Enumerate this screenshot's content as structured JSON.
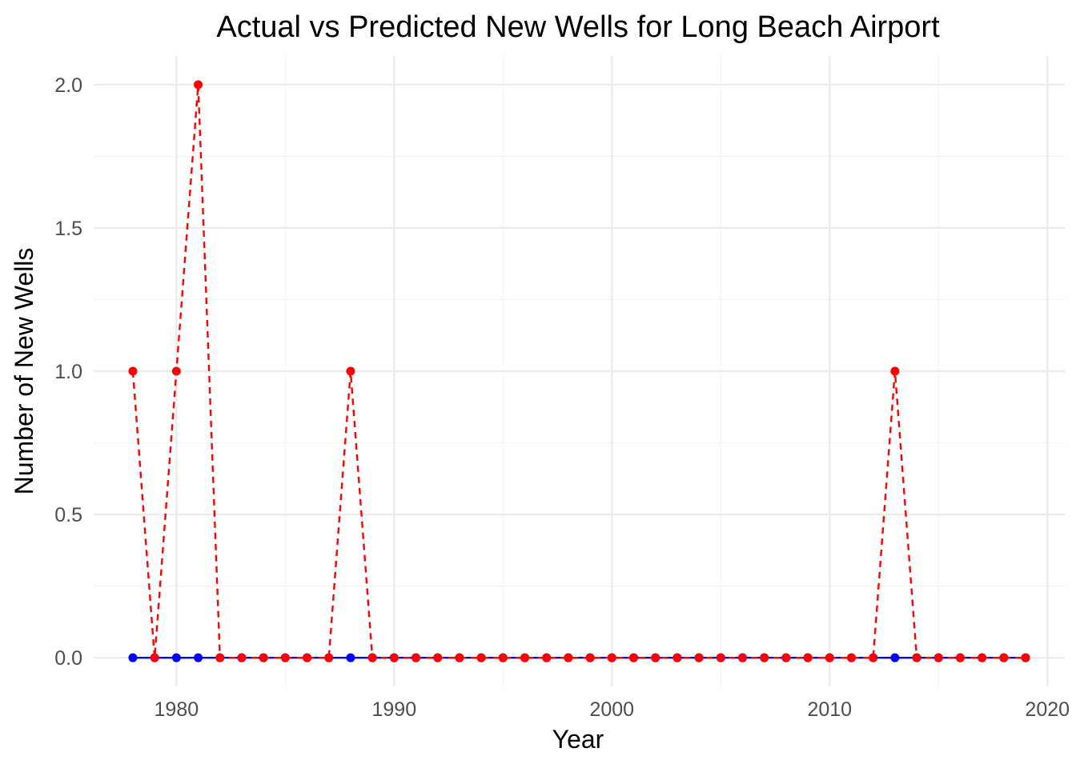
{
  "chart_data": {
    "type": "line",
    "title": "Actual vs Predicted New Wells for Long Beach Airport",
    "xlabel": "Year",
    "ylabel": "Number of New Wells",
    "xlim": [
      1976.2,
      2020.8
    ],
    "ylim": [
      -0.1,
      2.1
    ],
    "x_ticks": [
      1980,
      1990,
      2000,
      2010,
      2020
    ],
    "y_ticks": [
      0.0,
      0.5,
      1.0,
      1.5,
      2.0
    ],
    "x_tick_labels": [
      "1980",
      "1990",
      "2000",
      "2010",
      "2020"
    ],
    "y_tick_labels": [
      "0.0",
      "0.5",
      "1.0",
      "1.5",
      "2.0"
    ],
    "grid": true,
    "legend": "none",
    "x": [
      1978,
      1979,
      1980,
      1981,
      1982,
      1983,
      1984,
      1985,
      1986,
      1987,
      1988,
      1989,
      1990,
      1991,
      1992,
      1993,
      1994,
      1995,
      1996,
      1997,
      1998,
      1999,
      2000,
      2001,
      2002,
      2003,
      2004,
      2005,
      2006,
      2007,
      2008,
      2009,
      2010,
      2011,
      2012,
      2013,
      2014,
      2015,
      2016,
      2017,
      2018,
      2019
    ],
    "series": [
      {
        "color": "#0000ff",
        "line_style": "solid",
        "values": [
          0,
          0,
          0,
          0,
          0,
          0,
          0,
          0,
          0,
          0,
          0,
          0,
          0,
          0,
          0,
          0,
          0,
          0,
          0,
          0,
          0,
          0,
          0,
          0,
          0,
          0,
          0,
          0,
          0,
          0,
          0,
          0,
          0,
          0,
          0,
          0,
          0,
          0,
          0,
          0,
          0,
          0
        ]
      },
      {
        "color": "#ff0000",
        "line_style": "dashed",
        "values": [
          1,
          0,
          1,
          2,
          0,
          0,
          0,
          0,
          0,
          0,
          1,
          0,
          0,
          0,
          0,
          0,
          0,
          0,
          0,
          0,
          0,
          0,
          0,
          0,
          0,
          0,
          0,
          0,
          0,
          0,
          0,
          0,
          0,
          0,
          0,
          1,
          0,
          0,
          0,
          0,
          0,
          0
        ]
      }
    ]
  }
}
